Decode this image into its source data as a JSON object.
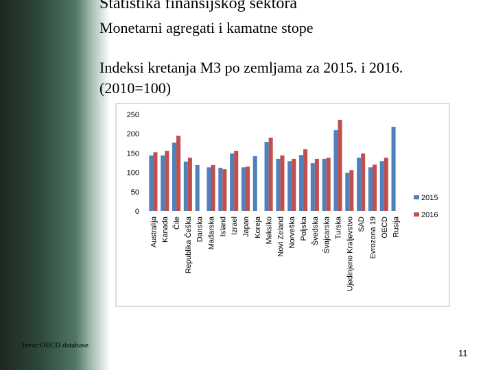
{
  "slide": {
    "title": "Statistika finansijskog sektora",
    "subtitle": "Monetarni agregati i kamatne stope",
    "source": "Izvor:OECD database",
    "page_number": "11"
  },
  "chart_data": {
    "type": "bar",
    "title": "Indeksi kretanja M3 po zemljama za 2015. i 2016. (2010=100)",
    "categories": [
      "Australija",
      "Kanada",
      "Čile",
      "Republika Češka",
      "Danska",
      "Mađarska",
      "Island",
      "Izrael",
      "Japan",
      "Koreja",
      "Meksiko",
      "Novi Zeland",
      "Norveška",
      "Poljska",
      "Švedska",
      "Švajcarska",
      "Turska",
      "Ujedinjeno Kraljevstvo",
      "SAD",
      "Evrozona 19",
      "OECD",
      "Rusija"
    ],
    "series": [
      {
        "name": "2015",
        "color": "#4f81bd",
        "values": [
          144,
          144,
          177,
          128,
          119,
          113,
          112,
          149,
          113,
          142,
          179,
          135,
          129,
          145,
          124,
          135,
          209,
          99,
          138,
          113,
          129,
          218
        ]
      },
      {
        "name": "2016",
        "color": "#c0504d",
        "values": [
          152,
          156,
          195,
          138,
          null,
          119,
          108,
          156,
          115,
          null,
          190,
          144,
          135,
          160,
          135,
          138,
          236,
          106,
          149,
          120,
          138,
          null
        ]
      }
    ],
    "ylim": [
      0,
      250
    ],
    "yticks": [
      0,
      50,
      100,
      150,
      200,
      250
    ],
    "grid": false,
    "legend": "right"
  }
}
